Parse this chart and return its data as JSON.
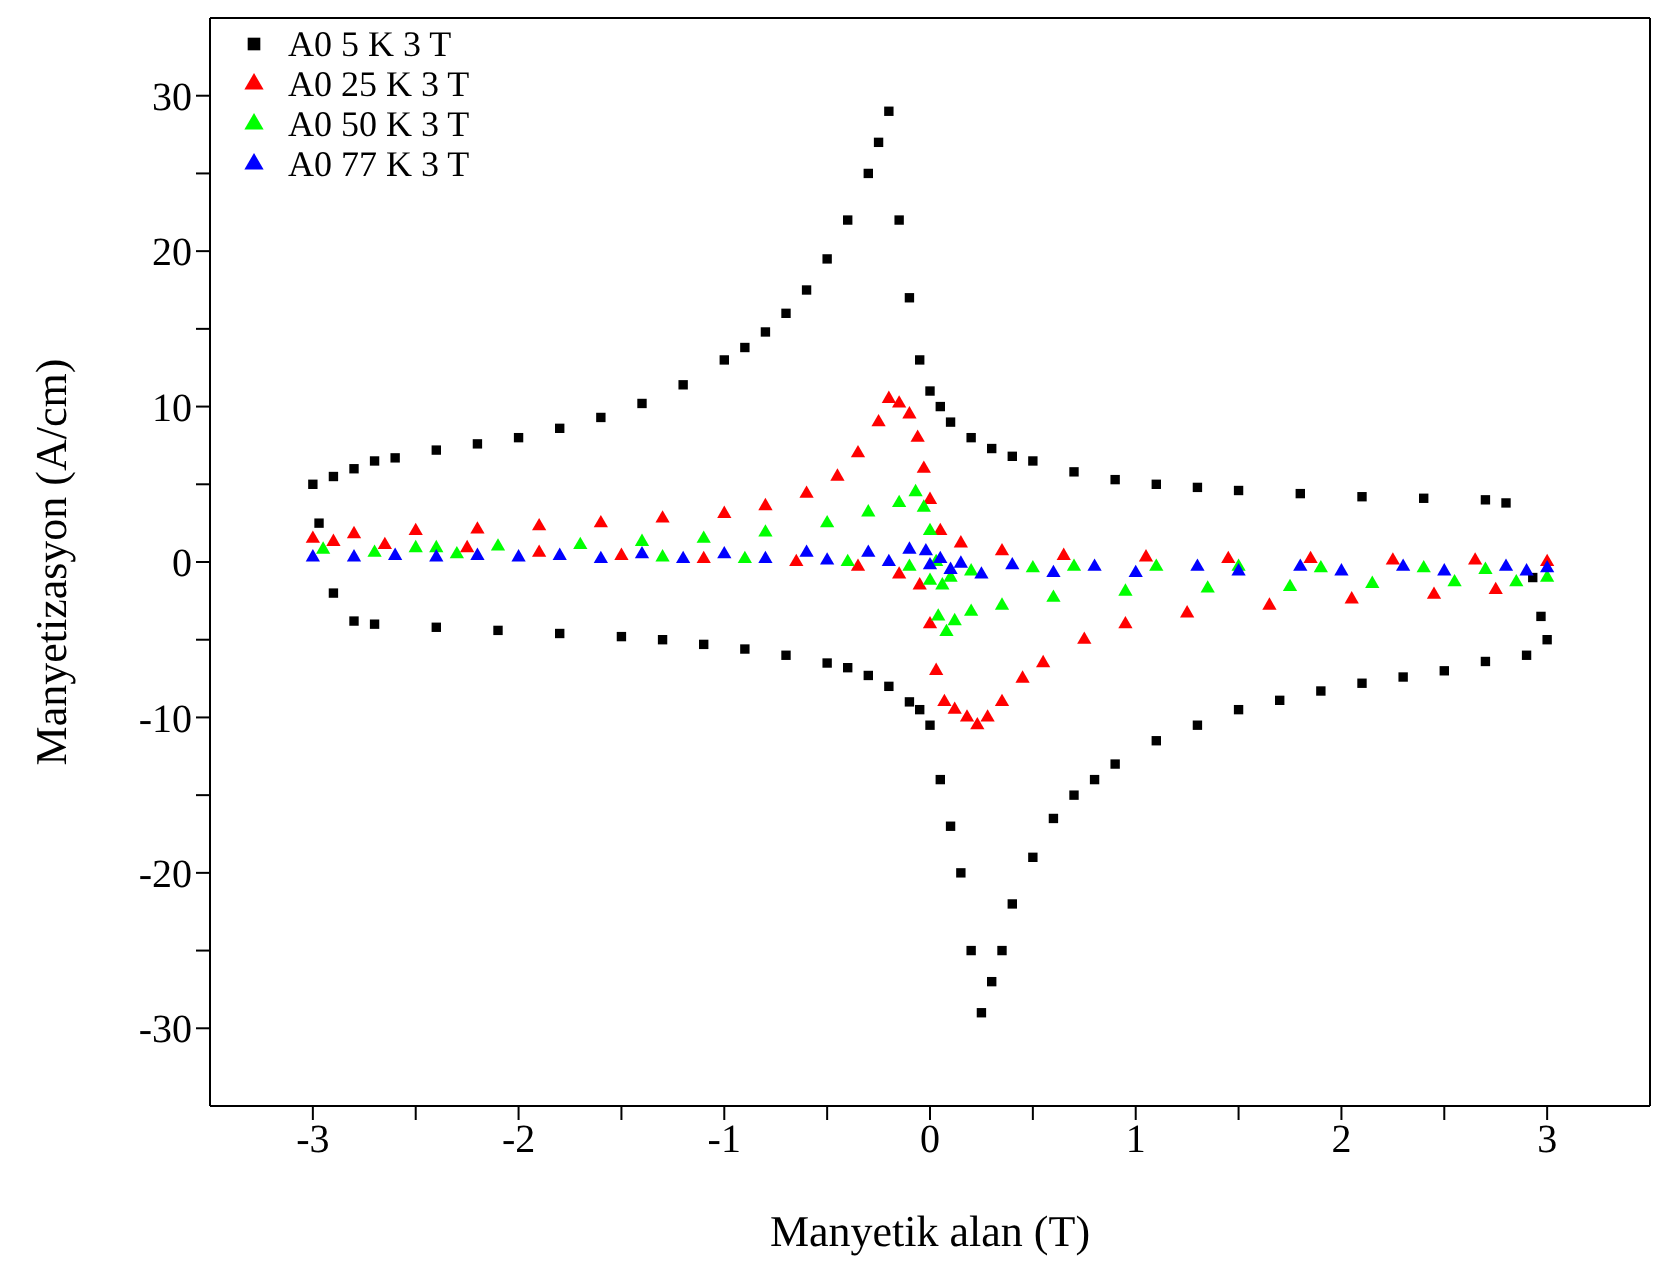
{
  "chart_data": {
    "type": "scatter",
    "xlabel": "Manyetik alan (T)",
    "ylabel": "Manyetizasyon (A/cm)",
    "xlim": [
      -3.5,
      3.5
    ],
    "ylim": [
      -35,
      35
    ],
    "xticks": [
      -3,
      {
        "value": -2.5,
        "label": null
      },
      -2,
      {
        "value": -1.5,
        "label": null
      },
      -1,
      {
        "value": -0.5,
        "label": null
      },
      0,
      {
        "value": 0.5,
        "label": null
      },
      1,
      {
        "value": 1.5,
        "label": null
      },
      2,
      {
        "value": 2.5,
        "label": null
      },
      3
    ],
    "yticks": [
      -30,
      {
        "value": -25,
        "label": null
      },
      -20,
      {
        "value": -15,
        "label": null
      },
      -10,
      {
        "value": -5,
        "label": null
      },
      0,
      {
        "value": 5,
        "label": null
      },
      10,
      {
        "value": 15,
        "label": null
      },
      20,
      {
        "value": 25,
        "label": null
      },
      30
    ],
    "legend": "top left",
    "series": [
      {
        "name": "A0 5 K 3 T",
        "color": "#000000",
        "marker": "square",
        "x": [
          -3,
          -2.9,
          -2.8,
          -2.7,
          -2.6,
          -2.4,
          -2.2,
          -2,
          -1.8,
          -1.6,
          -1.4,
          -1.2,
          -1,
          -0.9,
          -0.8,
          -0.7,
          -0.6,
          -0.5,
          -0.4,
          -0.3,
          -0.25,
          -0.2,
          -0.15,
          -0.1,
          -0.05,
          0,
          0.05,
          0.1,
          0.2,
          0.3,
          0.4,
          0.5,
          0.7,
          0.9,
          1.1,
          1.3,
          1.5,
          1.8,
          2.1,
          2.4,
          2.7,
          2.8,
          2.93,
          2.97,
          3,
          2.9,
          2.7,
          2.5,
          2.3,
          2.1,
          1.9,
          1.7,
          1.5,
          1.3,
          1.1,
          0.9,
          0.8,
          0.7,
          0.6,
          0.5,
          0.4,
          0.35,
          0.3,
          0.25,
          0.2,
          0.15,
          0.1,
          0.05,
          0,
          -0.05,
          -0.1,
          -0.2,
          -0.3,
          -0.4,
          -0.5,
          -0.7,
          -0.9,
          -1.1,
          -1.3,
          -1.5,
          -1.8,
          -2.1,
          -2.4,
          -2.7,
          -2.8,
          -2.9,
          -2.97
        ],
        "values": [
          5,
          5.5,
          6,
          6.5,
          6.7,
          7.2,
          7.6,
          8,
          8.6,
          9.3,
          10.2,
          11.4,
          13,
          13.8,
          14.8,
          16,
          17.5,
          19.5,
          22,
          25,
          27,
          29,
          22,
          17,
          13,
          11,
          10,
          9,
          8,
          7.3,
          6.8,
          6.5,
          5.8,
          5.3,
          5,
          4.8,
          4.6,
          4.4,
          4.2,
          4.1,
          4,
          3.8,
          -1,
          -3.5,
          -5,
          -6,
          -6.4,
          -7,
          -7.4,
          -7.8,
          -8.3,
          -8.9,
          -9.5,
          -10.5,
          -11.5,
          -13,
          -14,
          -15,
          -16.5,
          -19,
          -22,
          -25,
          -27,
          -29,
          -25,
          -20,
          -17,
          -14,
          -10.5,
          -9.5,
          -9,
          -8,
          -7.3,
          -6.8,
          -6.5,
          -6,
          -5.6,
          -5.3,
          -5,
          -4.8,
          -4.6,
          -4.4,
          -4.2,
          -4,
          -3.8,
          -2,
          2.5
        ]
      },
      {
        "name": "A0 25 K 3 T",
        "color": "#ff0000",
        "marker": "triangle",
        "x": [
          -3,
          -2.8,
          -2.5,
          -2.2,
          -1.9,
          -1.6,
          -1.3,
          -1,
          -0.8,
          -0.6,
          -0.45,
          -0.35,
          -0.25,
          -0.2,
          -0.15,
          -0.1,
          -0.06,
          -0.03,
          0,
          0.05,
          0.15,
          0.35,
          0.65,
          1.05,
          1.45,
          1.85,
          2.25,
          2.65,
          3,
          2.75,
          2.45,
          2.05,
          1.65,
          1.25,
          0.95,
          0.75,
          0.55,
          0.45,
          0.35,
          0.28,
          0.23,
          0.18,
          0.12,
          0.07,
          0.03,
          0,
          -0.05,
          -0.15,
          -0.35,
          -0.65,
          -1.1,
          -1.5,
          -1.9,
          -2.25,
          -2.65,
          -2.9
        ],
        "values": [
          1.5,
          1.8,
          2,
          2.1,
          2.3,
          2.5,
          2.8,
          3.1,
          3.6,
          4.4,
          5.5,
          7,
          9,
          10.5,
          10.2,
          9.5,
          8,
          6,
          4,
          2,
          1.2,
          0.7,
          0.4,
          0.3,
          0.2,
          0.2,
          0.1,
          0.1,
          0,
          -1.8,
          -2.1,
          -2.4,
          -2.8,
          -3.3,
          -4,
          -5,
          -6.5,
          -7.5,
          -9,
          -10,
          -10.5,
          -10,
          -9.5,
          -9,
          -7,
          -4,
          -1.5,
          -0.8,
          -0.3,
          0,
          0.2,
          0.4,
          0.6,
          0.9,
          1.1,
          1.3
        ]
      },
      {
        "name": "A0 50 K 3 T",
        "color": "#00ff00",
        "marker": "triangle",
        "x": [
          -2.95,
          -2.5,
          -2.4,
          -2.1,
          -1.7,
          -1.4,
          -1.1,
          -0.8,
          -0.5,
          -0.3,
          -0.15,
          -0.07,
          -0.03,
          0,
          0.03,
          0.06,
          0.1,
          0.2,
          0.5,
          0.7,
          1.1,
          1.5,
          1.9,
          2.4,
          2.7,
          3,
          2.85,
          2.55,
          2.15,
          1.75,
          1.35,
          0.95,
          0.6,
          0.35,
          0.2,
          0.12,
          0.08,
          0.04,
          0,
          -0.1,
          -0.4,
          -0.9,
          -1.3,
          -2.3,
          -2.7
        ],
        "values": [
          0.8,
          0.9,
          0.9,
          1,
          1.1,
          1.3,
          1.5,
          1.9,
          2.5,
          3.2,
          3.8,
          4.5,
          3.5,
          2,
          0,
          -1.5,
          -1,
          -0.6,
          -0.4,
          -0.3,
          -0.3,
          -0.3,
          -0.4,
          -0.4,
          -0.5,
          -1,
          -1.3,
          -1.3,
          -1.4,
          -1.6,
          -1.7,
          -1.9,
          -2.3,
          -2.8,
          -3.2,
          -3.8,
          -4.5,
          -3.5,
          -1.2,
          -0.3,
          0,
          0.2,
          0.3,
          0.5,
          0.6
        ]
      },
      {
        "name": "A0 77 K 3 T",
        "color": "#0000ff",
        "marker": "triangle",
        "x": [
          -3,
          -2.6,
          -2.2,
          -1.8,
          -1.4,
          -1,
          -0.6,
          -0.3,
          -0.1,
          -0.02,
          0.05,
          0.15,
          0.4,
          0.8,
          1.3,
          1.8,
          2.3,
          2.8,
          3,
          2.9,
          2.5,
          2,
          1.5,
          1,
          0.6,
          0.25,
          0.1,
          0,
          -0.2,
          -0.5,
          -0.8,
          -1.2,
          -1.6,
          -2,
          -2.4,
          -2.8
        ],
        "values": [
          0.3,
          0.4,
          0.4,
          0.4,
          0.5,
          0.5,
          0.6,
          0.6,
          0.8,
          0.7,
          0.2,
          -0.1,
          -0.2,
          -0.3,
          -0.3,
          -0.3,
          -0.3,
          -0.3,
          -0.4,
          -0.6,
          -0.6,
          -0.6,
          -0.6,
          -0.7,
          -0.7,
          -0.8,
          -0.5,
          -0.2,
          0,
          0.1,
          0.2,
          0.2,
          0.2,
          0.3,
          0.3,
          0.3
        ]
      }
    ]
  }
}
